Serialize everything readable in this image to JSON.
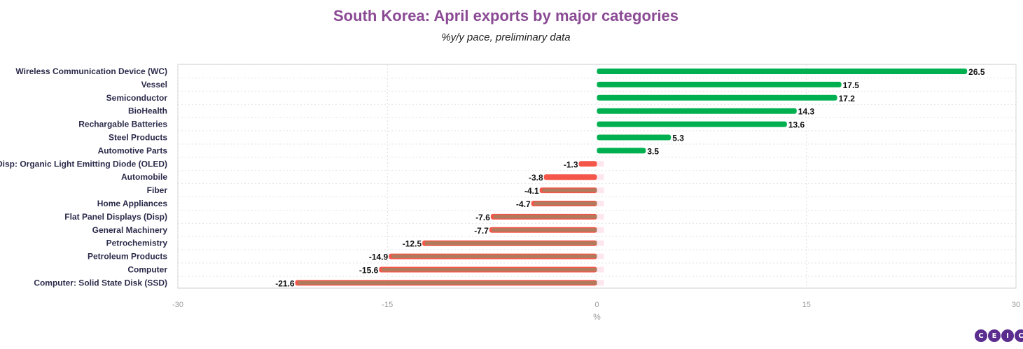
{
  "chart_data": {
    "type": "bar",
    "orientation": "horizontal",
    "title": "South Korea: April exports by major categories",
    "subtitle": "%y/y pace, preliminary data",
    "xlabel": "%",
    "xlim": [
      -30,
      30
    ],
    "xticks": [
      "-30",
      "-15",
      "0",
      "15",
      "30"
    ],
    "categories": [
      "Wireless Communication Device (WC)",
      "Vessel",
      "Semiconductor",
      "BioHealth",
      "Rechargable Batteries",
      "Steel Products",
      "Automotive Parts",
      "Disp: Organic Light Emitting Diode (OLED)",
      "Automobile",
      "Fiber",
      "Home Appliances",
      "Flat Panel Displays (Disp)",
      "General Machinery",
      "Petrochemistry",
      "Petroleum Products",
      "Computer",
      "Computer: Solid State Disk (SSD)"
    ],
    "values": [
      26.5,
      17.5,
      17.2,
      14.3,
      13.6,
      5.3,
      3.5,
      -1.3,
      -3.8,
      -4.1,
      -4.7,
      -7.6,
      -7.7,
      -12.5,
      -14.9,
      -15.6,
      -21.6
    ],
    "value_labels": [
      "26.5",
      "17.5",
      "17.2",
      "14.3",
      "13.6",
      "5.3",
      "3.5",
      "-1.3",
      "-3.8",
      "-4.1",
      "-4.7",
      "-7.6",
      "-7.7",
      "-12.5",
      "-14.9",
      "-15.6",
      "-21.6"
    ],
    "colors": {
      "positive": "#00b050",
      "negative": "#f4564a",
      "negative_inner": "#a9805e"
    },
    "grid": true
  },
  "logo": {
    "letters": [
      "C",
      "E",
      "I",
      "C"
    ]
  }
}
